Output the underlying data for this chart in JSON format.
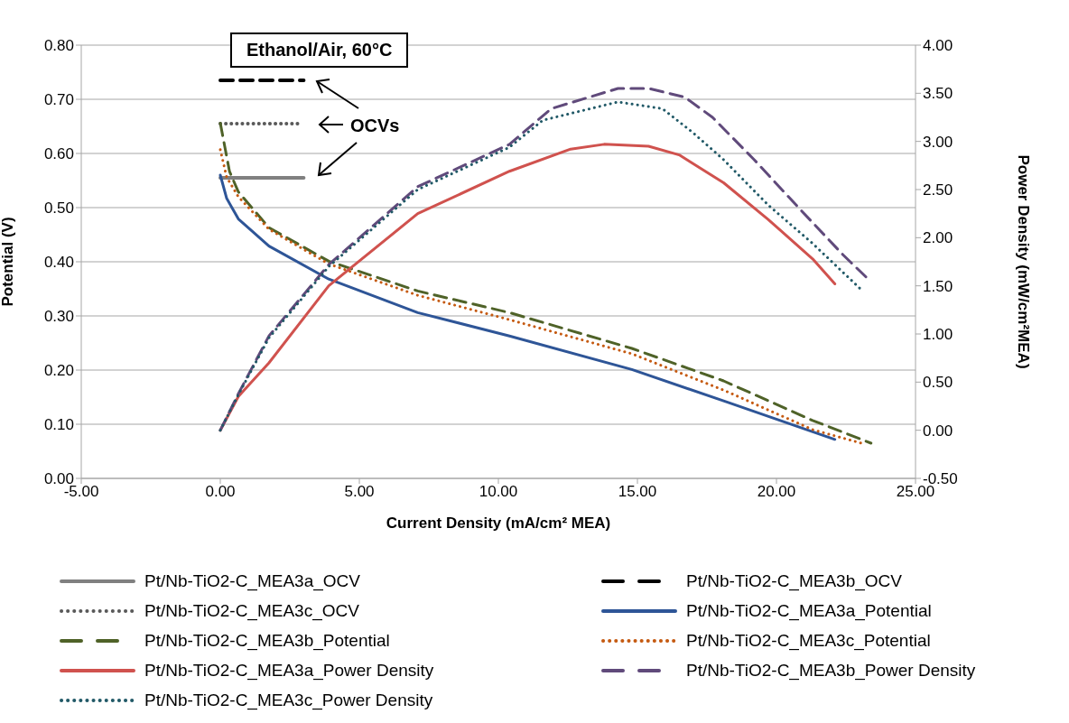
{
  "chart_data": {
    "type": "line",
    "title": "Ethanol/Air, 60°C",
    "xlabel": "Current Density (mA/cm² MEA)",
    "ylabel": "Potential (V)",
    "y2label": "Power Density (mW/cm²MEA)",
    "annotations": [
      "OCVs"
    ],
    "xlim": [
      -5,
      25
    ],
    "xticks": [
      {
        "value": -5,
        "label": "-5.00"
      },
      {
        "value": 0,
        "label": "0.00"
      },
      {
        "value": 5,
        "label": "5.00"
      },
      {
        "value": 10,
        "label": "10.00"
      },
      {
        "value": 15,
        "label": "15.00"
      },
      {
        "value": 20,
        "label": "20.00"
      },
      {
        "value": 25,
        "label": "25.00"
      }
    ],
    "ylim": [
      0,
      0.8
    ],
    "yticks": [
      {
        "value": 0,
        "label": "0.00"
      },
      {
        "value": 0.1,
        "label": "0.10"
      },
      {
        "value": 0.2,
        "label": "0.20"
      },
      {
        "value": 0.3,
        "label": "0.30"
      },
      {
        "value": 0.4,
        "label": "0.40"
      },
      {
        "value": 0.5,
        "label": "0.50"
      },
      {
        "value": 0.6,
        "label": "0.60"
      },
      {
        "value": 0.7,
        "label": "0.70"
      },
      {
        "value": 0.8,
        "label": "0.80"
      }
    ],
    "y2lim": [
      -0.5,
      4
    ],
    "y2ticks": [
      {
        "value": -0.5,
        "label": "-0.50"
      },
      {
        "value": 0,
        "label": "0.00"
      },
      {
        "value": 0.5,
        "label": "0.50"
      },
      {
        "value": 1,
        "label": "1.00"
      },
      {
        "value": 1.5,
        "label": "1.50"
      },
      {
        "value": 2,
        "label": "2.00"
      },
      {
        "value": 2.5,
        "label": "2.50"
      },
      {
        "value": 3,
        "label": "3.00"
      },
      {
        "value": 3.5,
        "label": "3.50"
      },
      {
        "value": 4,
        "label": "4.00"
      }
    ],
    "grid": "y",
    "legend": "bottom",
    "marker": "none",
    "series": [
      {
        "name": "Pt/Nb-TiO2-C_MEA3a_OCV",
        "color": "#808080",
        "line_style": "solid",
        "x": [
          0,
          3
        ],
        "values": [
          0.555,
          0.555
        ]
      },
      {
        "name": "Pt/Nb-TiO2-C_MEA3b_OCV",
        "color": "#000000",
        "line_style": "dashed",
        "x": [
          0,
          3
        ],
        "values": [
          0.735,
          0.735
        ]
      },
      {
        "name": "Pt/Nb-TiO2-C_MEA3c_OCV",
        "color": "#595959",
        "line_style": "dotted",
        "x": [
          0,
          2.8
        ],
        "values": [
          0.655,
          0.655
        ]
      },
      {
        "name": "Pt/Nb-TiO2-C_MEA3a_Potential",
        "color": "#2e5597",
        "line_style": "solid",
        "x": [
          0,
          0.23,
          0.65,
          1.75,
          3.9,
          7.1,
          10.4,
          14.8,
          18.1,
          22.1
        ],
        "values": [
          0.56,
          0.517,
          0.479,
          0.429,
          0.368,
          0.306,
          0.263,
          0.201,
          0.143,
          0.072
        ]
      },
      {
        "name": "Pt/Nb-TiO2-C_MEA3b_Potential",
        "color": "#4f6228",
        "line_style": "dashed",
        "x": [
          0,
          0.33,
          0.65,
          1.75,
          3.9,
          7.1,
          10.4,
          14.8,
          18.1,
          21.3,
          23.4
        ],
        "values": [
          0.656,
          0.567,
          0.529,
          0.463,
          0.401,
          0.346,
          0.306,
          0.24,
          0.18,
          0.107,
          0.065
        ]
      },
      {
        "name": "Pt/Nb-TiO2-C_MEA3c_Potential",
        "color": "#c55a11",
        "line_style": "dotted",
        "x": [
          0,
          0.23,
          0.65,
          1.75,
          3.9,
          7.1,
          10.4,
          14.8,
          18.1,
          21.3,
          23.05
        ],
        "values": [
          0.607,
          0.556,
          0.52,
          0.46,
          0.396,
          0.338,
          0.293,
          0.23,
          0.163,
          0.09,
          0.065
        ]
      },
      {
        "name": "Pt/Nb-TiO2-C_MEA3a_Power Density",
        "color": "#d0524e",
        "line_style": "solid",
        "axis": "y2",
        "x": [
          0,
          0.65,
          1.75,
          3.9,
          7.1,
          10.4,
          12.6,
          13.8,
          15.4,
          16.5,
          18.1,
          19.7,
          21.3,
          22.1
        ],
        "values": [
          0,
          0.35,
          0.7,
          1.5,
          2.25,
          2.69,
          2.92,
          2.97,
          2.95,
          2.86,
          2.57,
          2.19,
          1.78,
          1.52
        ]
      },
      {
        "name": "Pt/Nb-TiO2-C_MEA3b_Power Density",
        "color": "#604a7b",
        "line_style": "dashed",
        "axis": "y2",
        "x": [
          0,
          0.65,
          1.75,
          3.9,
          7.1,
          10.4,
          11.9,
          14.3,
          15.4,
          16.7,
          17.7,
          19.2,
          20.8,
          22.4,
          23.3
        ],
        "values": [
          0,
          0.38,
          0.98,
          1.72,
          2.53,
          2.97,
          3.34,
          3.55,
          3.55,
          3.46,
          3.25,
          2.81,
          2.31,
          1.82,
          1.57
        ]
      },
      {
        "name": "Pt/Nb-TiO2-C_MEA3c_Power Density",
        "color": "#215967",
        "line_style": "dotted",
        "axis": "y2",
        "x": [
          0,
          0.65,
          1.75,
          3.9,
          7.1,
          10.4,
          11.6,
          14.3,
          15.9,
          17,
          18.1,
          19.7,
          21.3,
          23.05
        ],
        "values": [
          0,
          0.37,
          0.96,
          1.7,
          2.5,
          2.94,
          3.22,
          3.41,
          3.34,
          3.09,
          2.81,
          2.34,
          1.94,
          1.46
        ]
      }
    ]
  }
}
